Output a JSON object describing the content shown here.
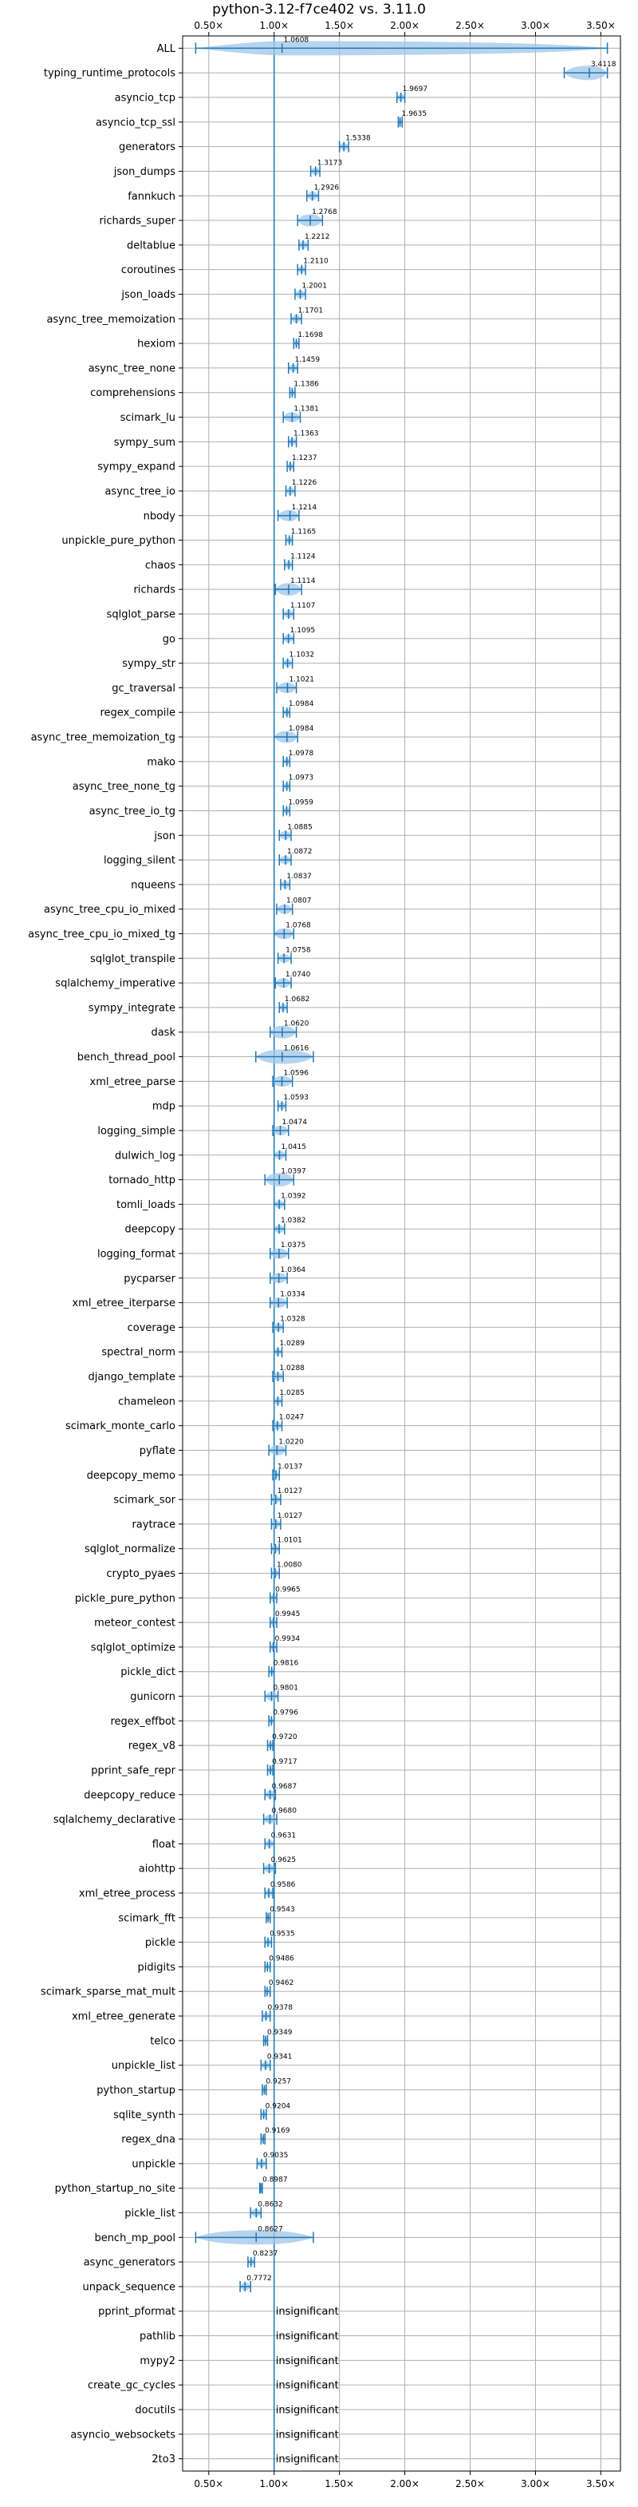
{
  "chart_data": {
    "type": "violin",
    "title": "python-3.12-f7ce402 vs. 3.11.0",
    "xlabel": "",
    "ylabel": "",
    "xlim": [
      0.3,
      3.65
    ],
    "xticks": [
      0.5,
      1.0,
      1.5,
      2.0,
      2.5,
      3.0,
      3.5
    ],
    "xtick_labels": [
      "0.50×",
      "1.00×",
      "1.50×",
      "2.00×",
      "2.50×",
      "3.00×",
      "3.50×"
    ],
    "reference_line": 1.0,
    "grid": true,
    "colors": {
      "violin": "#9fc5e8",
      "whisker": "#1f77b4",
      "refline": "#1f77b4",
      "grid": "#b0b0b0"
    },
    "benchmarks": [
      {
        "name": "ALL",
        "value": 1.0608,
        "label": "1.0608",
        "min": 0.4,
        "max": 3.55
      },
      {
        "name": "typing_runtime_protocols",
        "value": 3.4118,
        "label": "3.4118",
        "min": 3.22,
        "max": 3.55
      },
      {
        "name": "asyncio_tcp",
        "value": 1.9697,
        "label": "1.9697",
        "min": 1.94,
        "max": 2.0
      },
      {
        "name": "asyncio_tcp_ssl",
        "value": 1.9635,
        "label": "1.9635",
        "min": 1.95,
        "max": 1.98
      },
      {
        "name": "generators",
        "value": 1.5338,
        "label": "1.5338",
        "min": 1.5,
        "max": 1.57
      },
      {
        "name": "json_dumps",
        "value": 1.3173,
        "label": "1.3173",
        "min": 1.28,
        "max": 1.35
      },
      {
        "name": "fannkuch",
        "value": 1.2926,
        "label": "1.2926",
        "min": 1.25,
        "max": 1.34
      },
      {
        "name": "richards_super",
        "value": 1.2768,
        "label": "1.2768",
        "min": 1.18,
        "max": 1.37
      },
      {
        "name": "deltablue",
        "value": 1.2212,
        "label": "1.2212",
        "min": 1.19,
        "max": 1.26
      },
      {
        "name": "coroutines",
        "value": 1.211,
        "label": "1.2110",
        "min": 1.18,
        "max": 1.24
      },
      {
        "name": "json_loads",
        "value": 1.2001,
        "label": "1.2001",
        "min": 1.16,
        "max": 1.24
      },
      {
        "name": "async_tree_memoization",
        "value": 1.1701,
        "label": "1.1701",
        "min": 1.13,
        "max": 1.21
      },
      {
        "name": "hexiom",
        "value": 1.1698,
        "label": "1.1698",
        "min": 1.15,
        "max": 1.19
      },
      {
        "name": "async_tree_none",
        "value": 1.1459,
        "label": "1.1459",
        "min": 1.11,
        "max": 1.18
      },
      {
        "name": "comprehensions",
        "value": 1.1386,
        "label": "1.1386",
        "min": 1.12,
        "max": 1.16
      },
      {
        "name": "scimark_lu",
        "value": 1.1381,
        "label": "1.1381",
        "min": 1.07,
        "max": 1.2
      },
      {
        "name": "sympy_sum",
        "value": 1.1363,
        "label": "1.1363",
        "min": 1.11,
        "max": 1.17
      },
      {
        "name": "sympy_expand",
        "value": 1.1237,
        "label": "1.1237",
        "min": 1.1,
        "max": 1.15
      },
      {
        "name": "async_tree_io",
        "value": 1.1226,
        "label": "1.1226",
        "min": 1.09,
        "max": 1.16
      },
      {
        "name": "nbody",
        "value": 1.1214,
        "label": "1.1214",
        "min": 1.03,
        "max": 1.19
      },
      {
        "name": "unpickle_pure_python",
        "value": 1.1165,
        "label": "1.1165",
        "min": 1.09,
        "max": 1.14
      },
      {
        "name": "chaos",
        "value": 1.1124,
        "label": "1.1124",
        "min": 1.08,
        "max": 1.14
      },
      {
        "name": "richards",
        "value": 1.1114,
        "label": "1.1114",
        "min": 1.01,
        "max": 1.21
      },
      {
        "name": "sqlglot_parse",
        "value": 1.1107,
        "label": "1.1107",
        "min": 1.07,
        "max": 1.15
      },
      {
        "name": "go",
        "value": 1.1095,
        "label": "1.1095",
        "min": 1.07,
        "max": 1.15
      },
      {
        "name": "sympy_str",
        "value": 1.1032,
        "label": "1.1032",
        "min": 1.07,
        "max": 1.14
      },
      {
        "name": "gc_traversal",
        "value": 1.1021,
        "label": "1.1021",
        "min": 1.02,
        "max": 1.17
      },
      {
        "name": "regex_compile",
        "value": 1.0984,
        "label": "1.0984",
        "min": 1.07,
        "max": 1.12
      },
      {
        "name": "async_tree_memoization_tg",
        "value": 1.0984,
        "label": "1.0984",
        "min": 1.0,
        "max": 1.18
      },
      {
        "name": "mako",
        "value": 1.0978,
        "label": "1.0978",
        "min": 1.07,
        "max": 1.12
      },
      {
        "name": "async_tree_none_tg",
        "value": 1.0973,
        "label": "1.0973",
        "min": 1.07,
        "max": 1.12
      },
      {
        "name": "async_tree_io_tg",
        "value": 1.0959,
        "label": "1.0959",
        "min": 1.07,
        "max": 1.12
      },
      {
        "name": "json",
        "value": 1.0885,
        "label": "1.0885",
        "min": 1.04,
        "max": 1.13
      },
      {
        "name": "logging_silent",
        "value": 1.0872,
        "label": "1.0872",
        "min": 1.04,
        "max": 1.13
      },
      {
        "name": "nqueens",
        "value": 1.0837,
        "label": "1.0837",
        "min": 1.05,
        "max": 1.12
      },
      {
        "name": "async_tree_cpu_io_mixed",
        "value": 1.0807,
        "label": "1.0807",
        "min": 1.02,
        "max": 1.14
      },
      {
        "name": "async_tree_cpu_io_mixed_tg",
        "value": 1.0768,
        "label": "1.0768",
        "min": 1.0,
        "max": 1.15
      },
      {
        "name": "sqlglot_transpile",
        "value": 1.0758,
        "label": "1.0758",
        "min": 1.03,
        "max": 1.13
      },
      {
        "name": "sqlalchemy_imperative",
        "value": 1.074,
        "label": "1.0740",
        "min": 1.01,
        "max": 1.13
      },
      {
        "name": "sympy_integrate",
        "value": 1.0682,
        "label": "1.0682",
        "min": 1.04,
        "max": 1.1
      },
      {
        "name": "dask",
        "value": 1.062,
        "label": "1.0620",
        "min": 0.97,
        "max": 1.17
      },
      {
        "name": "bench_thread_pool",
        "value": 1.0616,
        "label": "1.0616",
        "min": 0.86,
        "max": 1.3
      },
      {
        "name": "xml_etree_parse",
        "value": 1.0596,
        "label": "1.0596",
        "min": 0.99,
        "max": 1.14
      },
      {
        "name": "mdp",
        "value": 1.0593,
        "label": "1.0593",
        "min": 1.03,
        "max": 1.09
      },
      {
        "name": "logging_simple",
        "value": 1.0474,
        "label": "1.0474",
        "min": 0.99,
        "max": 1.11
      },
      {
        "name": "dulwich_log",
        "value": 1.0415,
        "label": "1.0415",
        "min": 1.0,
        "max": 1.09
      },
      {
        "name": "tornado_http",
        "value": 1.0397,
        "label": "1.0397",
        "min": 0.93,
        "max": 1.15
      },
      {
        "name": "tomli_loads",
        "value": 1.0392,
        "label": "1.0392",
        "min": 1.0,
        "max": 1.08
      },
      {
        "name": "deepcopy",
        "value": 1.0382,
        "label": "1.0382",
        "min": 1.0,
        "max": 1.08
      },
      {
        "name": "logging_format",
        "value": 1.0375,
        "label": "1.0375",
        "min": 0.97,
        "max": 1.11
      },
      {
        "name": "pycparser",
        "value": 1.0364,
        "label": "1.0364",
        "min": 0.97,
        "max": 1.1
      },
      {
        "name": "xml_etree_iterparse",
        "value": 1.0334,
        "label": "1.0334",
        "min": 0.97,
        "max": 1.1
      },
      {
        "name": "coverage",
        "value": 1.0328,
        "label": "1.0328",
        "min": 0.99,
        "max": 1.07
      },
      {
        "name": "spectral_norm",
        "value": 1.0289,
        "label": "1.0289",
        "min": 1.0,
        "max": 1.06
      },
      {
        "name": "django_template",
        "value": 1.0288,
        "label": "1.0288",
        "min": 0.99,
        "max": 1.07
      },
      {
        "name": "chameleon",
        "value": 1.0285,
        "label": "1.0285",
        "min": 1.0,
        "max": 1.06
      },
      {
        "name": "scimark_monte_carlo",
        "value": 1.0247,
        "label": "1.0247",
        "min": 0.99,
        "max": 1.06
      },
      {
        "name": "pyflate",
        "value": 1.022,
        "label": "1.0220",
        "min": 0.96,
        "max": 1.09
      },
      {
        "name": "deepcopy_memo",
        "value": 1.0137,
        "label": "1.0137",
        "min": 0.99,
        "max": 1.04
      },
      {
        "name": "scimark_sor",
        "value": 1.0127,
        "label": "1.0127",
        "min": 0.98,
        "max": 1.05
      },
      {
        "name": "raytrace",
        "value": 1.0127,
        "label": "1.0127",
        "min": 0.98,
        "max": 1.05
      },
      {
        "name": "sqlglot_normalize",
        "value": 1.0101,
        "label": "1.0101",
        "min": 0.98,
        "max": 1.04
      },
      {
        "name": "crypto_pyaes",
        "value": 1.008,
        "label": "1.0080",
        "min": 0.98,
        "max": 1.04
      },
      {
        "name": "pickle_pure_python",
        "value": 0.9965,
        "label": "0.9965",
        "min": 0.97,
        "max": 1.02
      },
      {
        "name": "meteor_contest",
        "value": 0.9945,
        "label": "0.9945",
        "min": 0.97,
        "max": 1.02
      },
      {
        "name": "sqlglot_optimize",
        "value": 0.9934,
        "label": "0.9934",
        "min": 0.97,
        "max": 1.02
      },
      {
        "name": "pickle_dict",
        "value": 0.9816,
        "label": "0.9816",
        "min": 0.96,
        "max": 1.0
      },
      {
        "name": "gunicorn",
        "value": 0.9801,
        "label": "0.9801",
        "min": 0.93,
        "max": 1.03
      },
      {
        "name": "regex_effbot",
        "value": 0.9796,
        "label": "0.9796",
        "min": 0.96,
        "max": 1.0
      },
      {
        "name": "regex_v8",
        "value": 0.972,
        "label": "0.9720",
        "min": 0.95,
        "max": 0.99
      },
      {
        "name": "pprint_safe_repr",
        "value": 0.9717,
        "label": "0.9717",
        "min": 0.95,
        "max": 0.99
      },
      {
        "name": "deepcopy_reduce",
        "value": 0.9687,
        "label": "0.9687",
        "min": 0.93,
        "max": 1.01
      },
      {
        "name": "sqlalchemy_declarative",
        "value": 0.968,
        "label": "0.9680",
        "min": 0.92,
        "max": 1.02
      },
      {
        "name": "float",
        "value": 0.9631,
        "label": "0.9631",
        "min": 0.93,
        "max": 1.0
      },
      {
        "name": "aiohttp",
        "value": 0.9625,
        "label": "0.9625",
        "min": 0.92,
        "max": 1.01
      },
      {
        "name": "xml_etree_process",
        "value": 0.9586,
        "label": "0.9586",
        "min": 0.93,
        "max": 0.99
      },
      {
        "name": "scimark_fft",
        "value": 0.9543,
        "label": "0.9543",
        "min": 0.94,
        "max": 0.97
      },
      {
        "name": "pickle",
        "value": 0.9535,
        "label": "0.9535",
        "min": 0.93,
        "max": 0.98
      },
      {
        "name": "pidigits",
        "value": 0.9486,
        "label": "0.9486",
        "min": 0.93,
        "max": 0.97
      },
      {
        "name": "scimark_sparse_mat_mult",
        "value": 0.9462,
        "label": "0.9462",
        "min": 0.93,
        "max": 0.97
      },
      {
        "name": "xml_etree_generate",
        "value": 0.9378,
        "label": "0.9378",
        "min": 0.91,
        "max": 0.97
      },
      {
        "name": "telco",
        "value": 0.9349,
        "label": "0.9349",
        "min": 0.92,
        "max": 0.95
      },
      {
        "name": "unpickle_list",
        "value": 0.9341,
        "label": "0.9341",
        "min": 0.9,
        "max": 0.97
      },
      {
        "name": "python_startup",
        "value": 0.9257,
        "label": "0.9257",
        "min": 0.91,
        "max": 0.94
      },
      {
        "name": "sqlite_synth",
        "value": 0.9204,
        "label": "0.9204",
        "min": 0.9,
        "max": 0.94
      },
      {
        "name": "regex_dna",
        "value": 0.9169,
        "label": "0.9169",
        "min": 0.9,
        "max": 0.93
      },
      {
        "name": "unpickle",
        "value": 0.9035,
        "label": "0.9035",
        "min": 0.87,
        "max": 0.94
      },
      {
        "name": "python_startup_no_site",
        "value": 0.8987,
        "label": "0.8987",
        "min": 0.89,
        "max": 0.91
      },
      {
        "name": "pickle_list",
        "value": 0.8632,
        "label": "0.8632",
        "min": 0.82,
        "max": 0.9
      },
      {
        "name": "bench_mp_pool",
        "value": 0.8627,
        "label": "0.8627",
        "min": 0.4,
        "max": 1.3
      },
      {
        "name": "async_generators",
        "value": 0.8237,
        "label": "0.8237",
        "min": 0.8,
        "max": 0.85
      },
      {
        "name": "unpack_sequence",
        "value": 0.7772,
        "label": "0.7772",
        "min": 0.74,
        "max": 0.82
      },
      {
        "name": "pprint_pformat",
        "insignificant": true,
        "label": "insignificant"
      },
      {
        "name": "pathlib",
        "insignificant": true,
        "label": "insignificant"
      },
      {
        "name": "mypy2",
        "insignificant": true,
        "label": "insignificant"
      },
      {
        "name": "create_gc_cycles",
        "insignificant": true,
        "label": "insignificant"
      },
      {
        "name": "docutils",
        "insignificant": true,
        "label": "insignificant"
      },
      {
        "name": "asyncio_websockets",
        "insignificant": true,
        "label": "insignificant"
      },
      {
        "name": "2to3",
        "insignificant": true,
        "label": "insignificant"
      }
    ]
  }
}
